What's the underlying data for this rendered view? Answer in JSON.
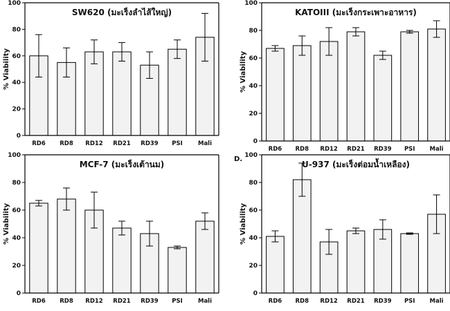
{
  "chart_data": [
    {
      "type": "bar",
      "panel_letter": "",
      "title": "SW620 (มะเร็งลำไส้ใหญ่)",
      "ylabel": "% Viability",
      "ylim": [
        0,
        100
      ],
      "yticks": [
        0,
        20,
        40,
        60,
        80,
        100
      ],
      "categories": [
        "RD6",
        "RD8",
        "RD12",
        "RD21",
        "RD39",
        "PSI",
        "Mali"
      ],
      "values": [
        60,
        55,
        63,
        63,
        53,
        65,
        74
      ],
      "errors": [
        16,
        11,
        9,
        7,
        10,
        7,
        18
      ]
    },
    {
      "type": "bar",
      "panel_letter": "",
      "title": "KATOIII (มะเร็งกระเพาะอาหาร)",
      "ylabel": "% Viability",
      "ylim": [
        0,
        100
      ],
      "yticks": [
        0,
        20,
        40,
        60,
        80,
        100
      ],
      "categories": [
        "RD6",
        "RD8",
        "RD12",
        "RD21",
        "RD39",
        "PSI",
        "Mali"
      ],
      "values": [
        67,
        69,
        72,
        79,
        62,
        79,
        81
      ],
      "errors": [
        2,
        7,
        10,
        3,
        3,
        1,
        6
      ]
    },
    {
      "type": "bar",
      "panel_letter": "",
      "title": "MCF-7 (มะเร็งเต้านม)",
      "ylabel": "% Viability",
      "ylim": [
        0,
        100
      ],
      "yticks": [
        0,
        20,
        40,
        60,
        80,
        100
      ],
      "categories": [
        "RD6",
        "RD8",
        "RD12",
        "RD21",
        "RD39",
        "PSI",
        "Mali"
      ],
      "values": [
        65,
        68,
        60,
        47,
        43,
        33,
        52
      ],
      "errors": [
        2,
        8,
        13,
        5,
        9,
        1,
        6
      ]
    },
    {
      "type": "bar",
      "panel_letter": "D.",
      "title": "U-937 (มะเร็งต่อมน้ำเหลือง)",
      "ylabel": "% Viability",
      "ylim": [
        0,
        100
      ],
      "yticks": [
        0,
        20,
        40,
        60,
        80,
        100
      ],
      "categories": [
        "RD6",
        "RD8",
        "RD12",
        "RD21",
        "RD39",
        "PSI",
        "Mali"
      ],
      "values": [
        41,
        82,
        37,
        45,
        46,
        43,
        57
      ],
      "errors": [
        4,
        12,
        9,
        2,
        7,
        0.5,
        14
      ]
    }
  ]
}
